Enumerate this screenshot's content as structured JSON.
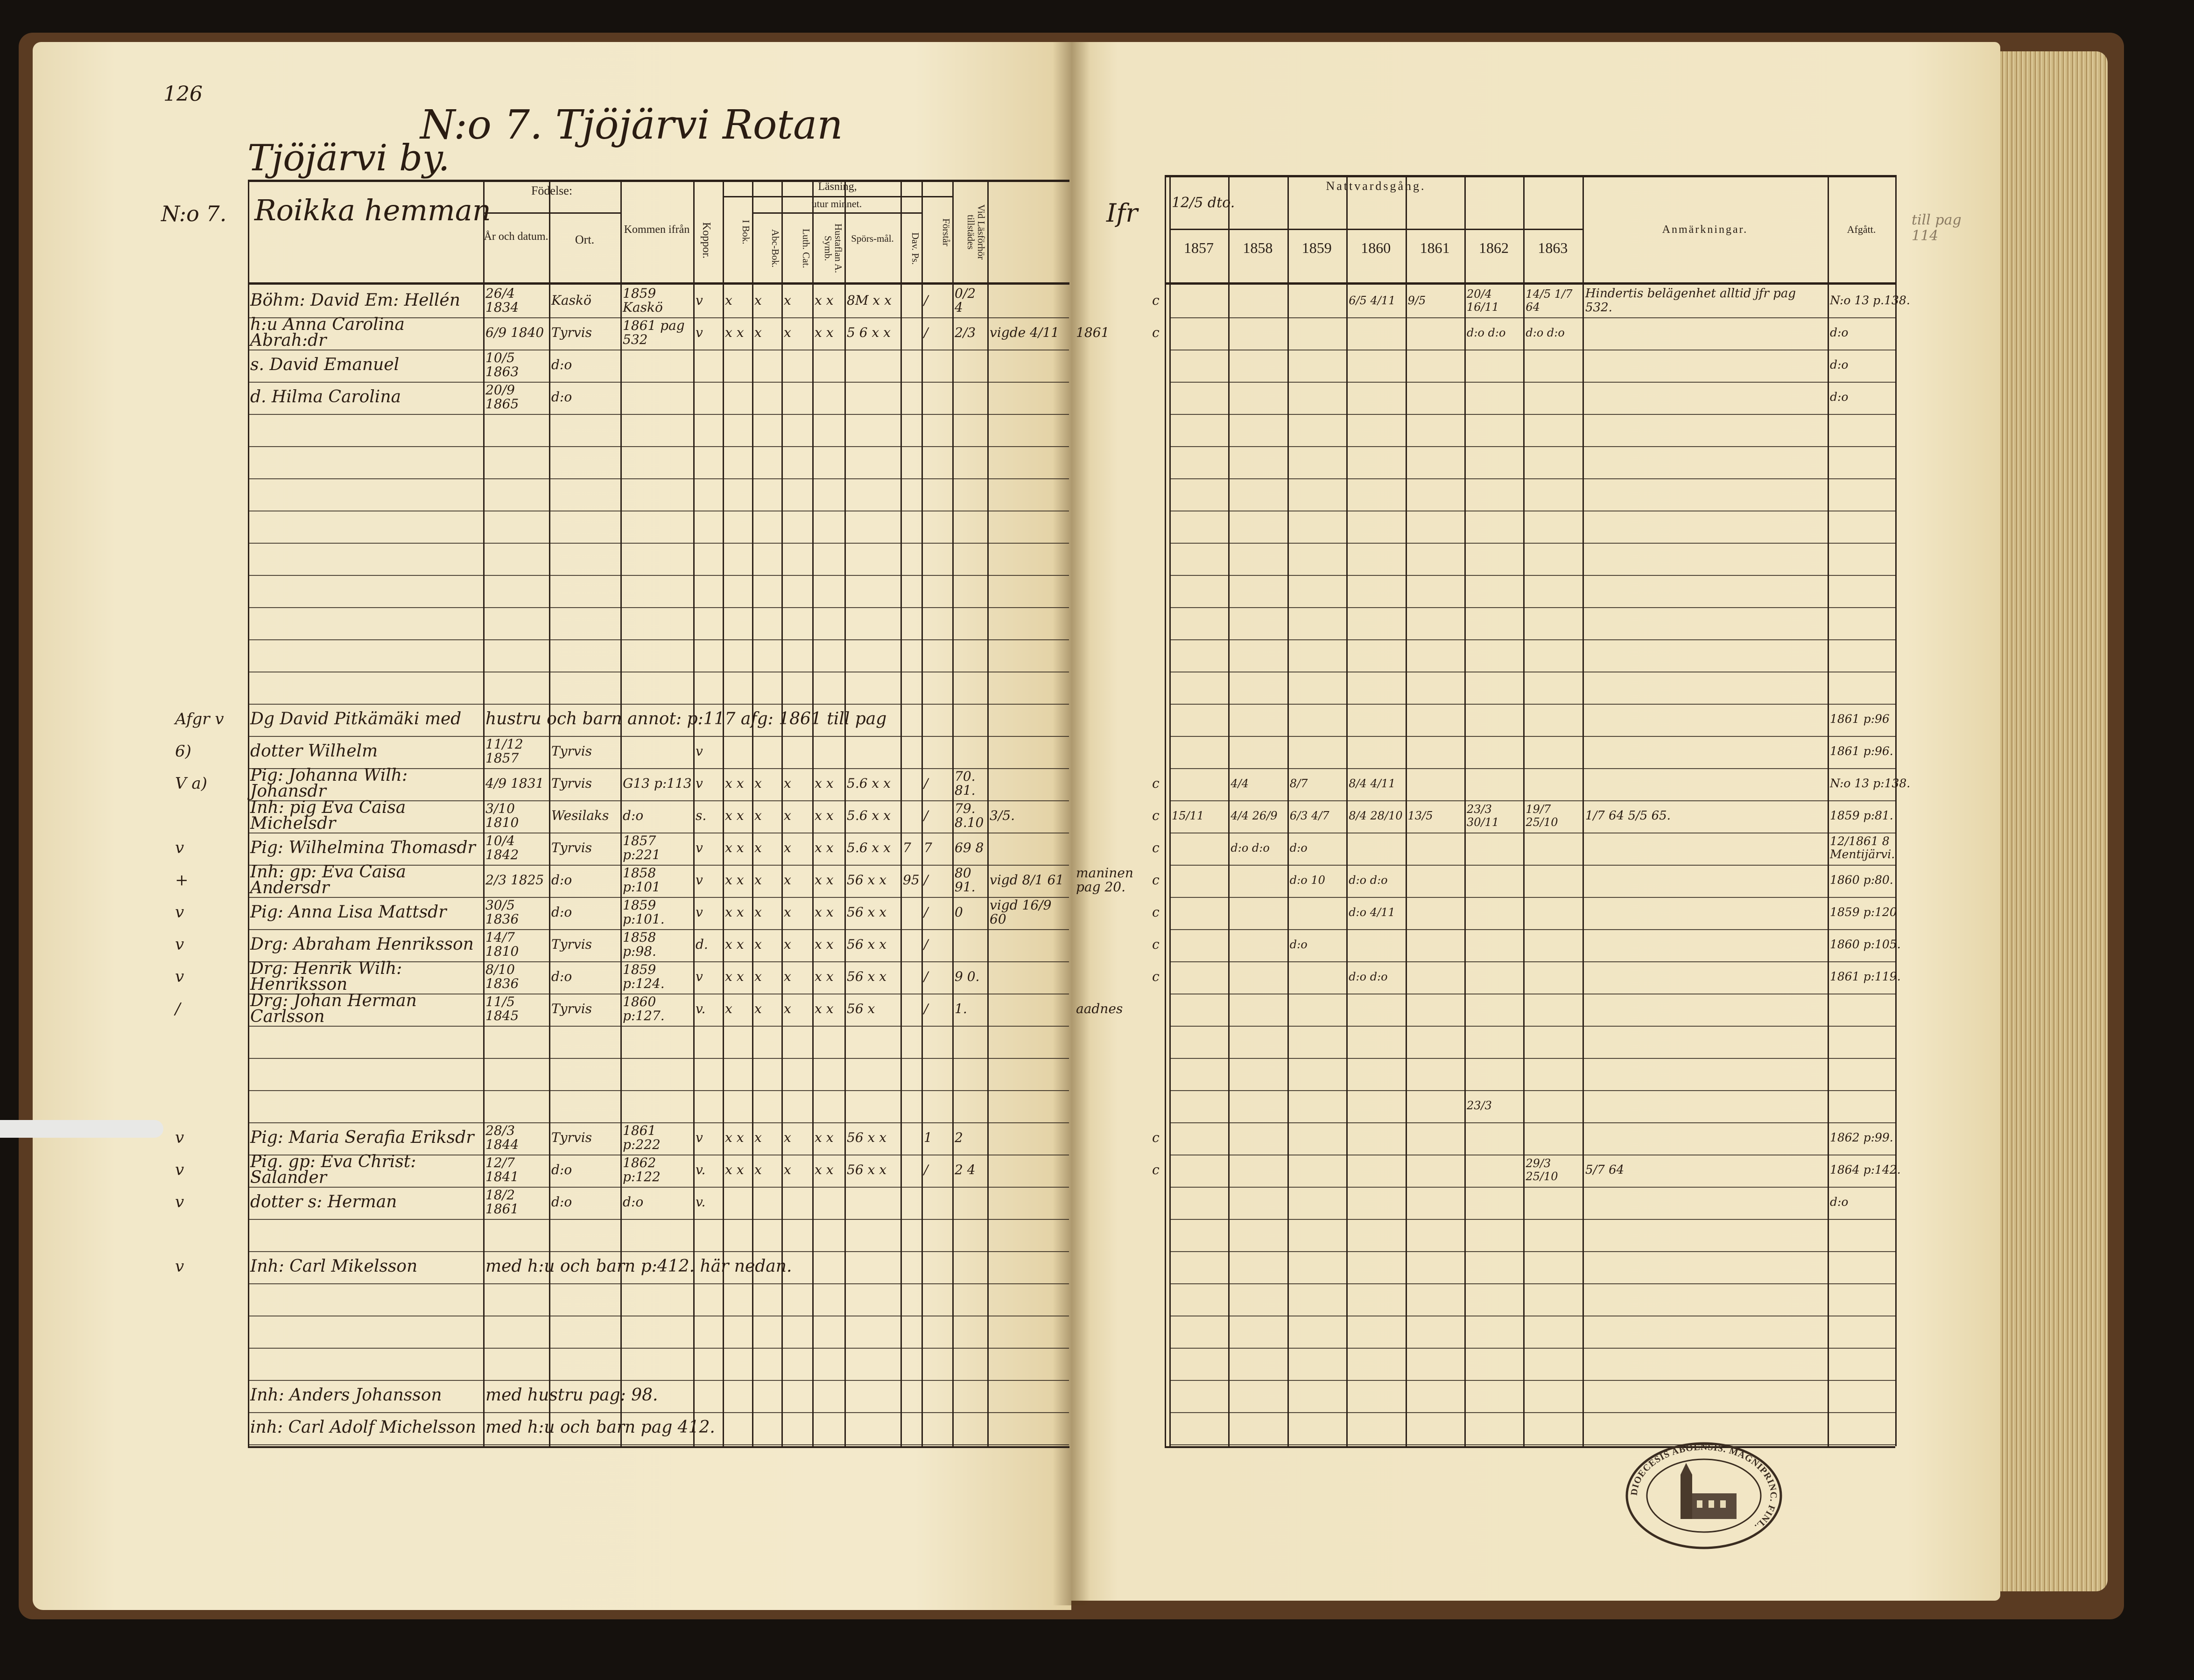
{
  "left_page": {
    "page_number": "126",
    "title": "N:o 7. Tjöjärvi Rotan",
    "village": "Tjöjärvi by.",
    "household_no": "N:o 7.",
    "household": "Roikka hemman",
    "headers": {
      "fodelse": "Födelse:",
      "ar": "År och datum.",
      "ort": "Ort.",
      "kommen": "Kommen ifrån",
      "koppor": "Koppor.",
      "lasning": "Läsning,",
      "utur_minnet": "utur minnet.",
      "ibok": "I Bok.",
      "abc": "Abc-Bok.",
      "luth": "Luth. Cat.",
      "husta": "Hustaflan A. Symb.",
      "spors": "Spörs-mål.",
      "dav": "Dav. Ps.",
      "forstar": "Förstår",
      "vid": "Vid Läsförhör tillstädes"
    },
    "rows": [
      {
        "name": "Böhm: David Em: Hellén",
        "born": "26/4 1834",
        "place": "Kaskö",
        "from": "1859 Kaskö",
        "koppor": "v",
        "ibok": "x",
        "abc": "x",
        "luth": "x",
        "husta": "x x",
        "spors": "8M x x",
        "forstar": "/",
        "vid": "0/2 4"
      },
      {
        "name": "h:u Anna Carolina Abrah:dr",
        "born": "6/9 1840",
        "place": "Tyrvis",
        "from": "1861 pag 532",
        "koppor": "v",
        "ibok": "x x",
        "abc": "x",
        "luth": "x",
        "husta": "x x",
        "spors": "5 6 x x",
        "forstar": "/",
        "vid": "2/3",
        "extra": "vigde 4/11"
      },
      {
        "name": "s. David Emanuel",
        "born": "10/5 1863",
        "place": "d:o"
      },
      {
        "name": "d. Hilma Carolina",
        "born": "20/9 1865",
        "place": "d:o"
      },
      {},
      {},
      {},
      {},
      {},
      {},
      {},
      {},
      {},
      {
        "mark": "Afgr v",
        "name": "Dg David Pitkämäki med",
        "note": "hustru och barn annot: p:117 afg: 1861 till pag"
      },
      {
        "mark": "6)",
        "name": "dotter Wilhelm",
        "born": "11/12 1857",
        "place": "Tyrvis",
        "koppor": "v"
      },
      {
        "mark": "V a)",
        "name": "Pig: Johanna Wilh: Johansdr",
        "born": "4/9 1831",
        "place": "Tyrvis",
        "from": "G13 p:113",
        "koppor": "v",
        "ibok": "x x",
        "abc": "x",
        "luth": "x",
        "husta": "x x",
        "spors": "5.6 x x",
        "forstar": "/",
        "vid": "70. 81."
      },
      {
        "name": "Inh: pig Eva Caisa Michelsdr",
        "born": "3/10 1810",
        "place": "Wesilaks",
        "from": "d:o",
        "koppor": "s.",
        "ibok": "x x",
        "abc": "x",
        "luth": "x",
        "husta": "x x",
        "spors": "5.6 x x",
        "forstar": "/",
        "vid": "79. 8.10",
        "extra": "3/5."
      },
      {
        "mark": "v",
        "name": "Pig: Wilhelmina Thomasdr",
        "born": "10/4 1842",
        "place": "Tyrvis",
        "from": "1857 p:221",
        "koppor": "v",
        "ibok": "x x",
        "abc": "x",
        "luth": "x",
        "husta": "x x",
        "spors": "5.6 x x",
        "dav": "7",
        "forstar": "7",
        "vid": "69 8"
      },
      {
        "mark": "+",
        "name": "Inh: gp: Eva Caisa Andersdr",
        "born": "2/3 1825",
        "place": "d:o",
        "from": "1858 p:101",
        "koppor": "v",
        "ibok": "x x",
        "abc": "x",
        "luth": "x",
        "husta": "x x",
        "spors": "56 x x",
        "dav": "95",
        "forstar": "/",
        "vid": "80 91.",
        "extra": "vigd 8/1 61"
      },
      {
        "mark": "v",
        "name": "Pig: Anna Lisa Mattsdr",
        "born": "30/5 1836",
        "place": "d:o",
        "from": "1859 p:101.",
        "koppor": "v",
        "ibok": "x x",
        "abc": "x",
        "luth": "x",
        "husta": "x x",
        "spors": "56 x x",
        "forstar": "/",
        "vid": "0",
        "extra": "vigd 16/9 60"
      },
      {
        "mark": "v",
        "name": "Drg: Abraham Henriksson",
        "born": "14/7 1810",
        "place": "Tyrvis",
        "from": "1858 p:98.",
        "koppor": "d.",
        "ibok": "x x",
        "abc": "x",
        "luth": "x",
        "husta": "x x",
        "spors": "56 x x",
        "forstar": "/"
      },
      {
        "mark": "v",
        "name": "Drg: Henrik Wilh: Henriksson",
        "born": "8/10 1836",
        "place": "d:o",
        "from": "1859 p:124.",
        "koppor": "v",
        "ibok": "x x",
        "abc": "x",
        "luth": "x",
        "husta": "x x",
        "spors": "56 x x",
        "forstar": "/",
        "vid": "9 0."
      },
      {
        "mark": "/",
        "name": "Drg: Johan Herman Carlsson",
        "born": "11/5 1845",
        "place": "Tyrvis",
        "from": "1860 p:127.",
        "koppor": "v.",
        "ibok": "x",
        "abc": "x",
        "luth": "x",
        "husta": "x x",
        "spors": "56 x",
        "forstar": "/",
        "vid": "1."
      },
      {},
      {},
      {},
      {
        "mark": "v",
        "name": "Pig: Maria Serafia Eriksdr",
        "born": "28/3 1844",
        "place": "Tyrvis",
        "from": "1861 p:222",
        "koppor": "v",
        "ibok": "x x",
        "abc": "x",
        "luth": "x",
        "husta": "x x",
        "spors": "56 x x",
        "forstar": "1",
        "vid": "2"
      },
      {
        "mark": "v",
        "name": "Pig. gp: Eva Christ: Salander",
        "born": "12/7 1841",
        "place": "d:o",
        "from": "1862 p:122",
        "koppor": "v.",
        "ibok": "x x",
        "abc": "x",
        "luth": "x",
        "husta": "x x",
        "spors": "56 x x",
        "forstar": "/",
        "vid": "2 4"
      },
      {
        "mark": "v",
        "name": "dotter s: Herman",
        "born": "18/2 1861",
        "place": "d:o",
        "from": "d:o",
        "koppor": "v."
      },
      {},
      {
        "mark": "v",
        "name": "Inh: Carl Mikelsson",
        "note": "med h:u och barn p:412. här nedan."
      },
      {},
      {},
      {},
      {
        "name": "Inh: Anders Johansson",
        "note": "med hustru pag: 98."
      },
      {
        "name": "inh: Carl Adolf Michelsson",
        "note": "med h:u och barn pag 412."
      }
    ]
  },
  "right_page": {
    "headers": {
      "ifr": "Ifr",
      "nattvard_note": "12/5 dto.",
      "nattvard": "Nattvardsgång.",
      "years": [
        "1857",
        "1858",
        "1859",
        "1860",
        "1861",
        "1862",
        "1863"
      ],
      "anm": "Anmärkningar.",
      "afgatt": "Afgått."
    },
    "margin_note": "till pag 114",
    "rows": [
      {
        "c": "c",
        "n": [
          "",
          "",
          "",
          "6/5 4/11",
          "9/5",
          "20/4 16/11",
          "14/5 1/7 64"
        ],
        "anm": "Hindertis belägenhet alltid jfr pag 532.",
        "afg": "N:o 13 p.138."
      },
      {
        "ifr": "1861",
        "c": "c",
        "n": [
          "",
          "",
          "",
          "",
          "",
          "d:o d:o",
          "d:o d:o"
        ],
        "afg": "d:o"
      },
      {
        "afg": "d:o"
      },
      {
        "afg": "d:o"
      },
      {},
      {},
      {},
      {},
      {},
      {},
      {},
      {},
      {},
      {
        "afg": "1861 p:96"
      },
      {
        "afg": "1861 p:96."
      },
      {
        "c": "c",
        "n": [
          "",
          "4/4",
          "8/7",
          "8/4 4/11",
          "",
          "",
          ""
        ],
        "afg": "N:o 13 p:138."
      },
      {
        "c": "c",
        "n": [
          "15/11",
          "4/4 26/9",
          "6/3 4/7",
          "8/4 28/10",
          "13/5",
          "23/3 30/11",
          "19/7 25/10"
        ],
        "anm": "1/7 64  5/5 65.",
        "afg": "1859 p:81."
      },
      {
        "c": "c",
        "n": [
          "",
          "d:o d:o",
          "d:o",
          "",
          "",
          "",
          ""
        ],
        "afg": "12/1861 8 Mentijärvi."
      },
      {
        "ifr": "maninen pag 20.",
        "c": "c",
        "n": [
          "",
          "",
          "d:o 10",
          "d:o d:o",
          "",
          "",
          ""
        ],
        "afg": "1860 p:80."
      },
      {
        "c": "c",
        "n": [
          "",
          "",
          "",
          "d:o 4/11",
          "",
          "",
          ""
        ],
        "afg": "1859 p:120"
      },
      {
        "c": "c",
        "n": [
          "",
          "",
          "d:o",
          "",
          "",
          "",
          ""
        ],
        "afg": "1860 p:105."
      },
      {
        "c": "c",
        "n": [
          "",
          "",
          "",
          "d:o d:o",
          "",
          "",
          ""
        ],
        "afg": "1861 p:119."
      },
      {
        "ifr": "aadnes"
      },
      {},
      {},
      {
        "n": [
          "",
          "",
          "",
          "",
          "",
          "23/3",
          ""
        ]
      },
      {
        "c": "c",
        "afg": "1862 p:99."
      },
      {
        "c": "c",
        "n": [
          "",
          "",
          "",
          "",
          "",
          "",
          "29/3 25/10"
        ],
        "anm": "5/7 64",
        "afg": "1864 p:142."
      },
      {
        "afg": "d:o"
      },
      {},
      {},
      {},
      {},
      {},
      {},
      {},
      {}
    ]
  },
  "stamp": {
    "text": "DIOECESIS ABOENSIS. MAGNIPRINC. FINL."
  }
}
